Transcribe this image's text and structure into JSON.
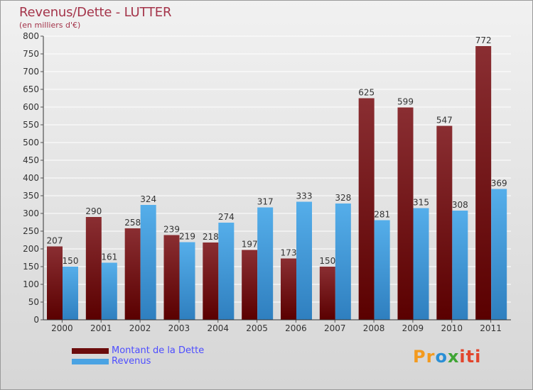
{
  "header": {
    "title": "Revenus/Dette - LUTTER",
    "subtitle": "(en milliers d'€)"
  },
  "legend": {
    "items": [
      {
        "label": "Montant de la Dette",
        "color": "#6b0c0c"
      },
      {
        "label": "Revenus",
        "color": "#4aa3e3"
      }
    ]
  },
  "logo": {
    "text": "Proxiti",
    "colors": [
      "#f39a1e",
      "#2a8fd6",
      "#3fa535",
      "#e2452c"
    ]
  },
  "chart_data": {
    "type": "bar",
    "title": "Revenus/Dette - LUTTER",
    "subtitle": "(en milliers d'€)",
    "categories": [
      "2000",
      "2001",
      "2002",
      "2003",
      "2004",
      "2005",
      "2006",
      "2007",
      "2008",
      "2009",
      "2010",
      "2011"
    ],
    "series": [
      {
        "name": "Montant de la Dette",
        "color": "#6b0c0c",
        "values": [
          207,
          290,
          258,
          239,
          218,
          197,
          173,
          150,
          625,
          599,
          547,
          772
        ]
      },
      {
        "name": "Revenus",
        "color": "#4aa3e3",
        "values": [
          150,
          161,
          324,
          219,
          274,
          317,
          333,
          328,
          281,
          315,
          308,
          369
        ]
      }
    ],
    "yticks": [
      0,
      50,
      100,
      150,
      200,
      250,
      300,
      350,
      400,
      450,
      500,
      550,
      600,
      650,
      700,
      750,
      800
    ],
    "ylim": [
      0,
      800
    ],
    "grid": true,
    "legend_position": "bottom-left"
  }
}
